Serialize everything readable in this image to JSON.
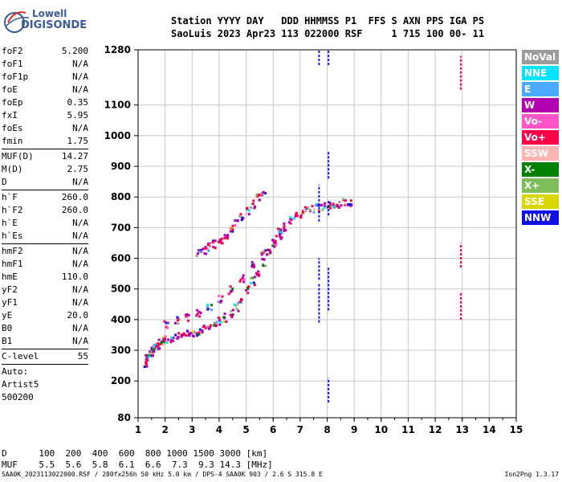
{
  "logo": {
    "line1": "Lowell",
    "line2": "DIGISONDE"
  },
  "header": {
    "labels": "Station YYYY DAY   DDD HHMMSS P1  FFS S AXN PPS IGA PS",
    "values": "SaoLuis 2023 Apr23 113 022000 RSF     1 715 100 00- 11"
  },
  "params": [
    {
      "label": "foF2",
      "value": "5.200"
    },
    {
      "label": "foF1",
      "value": "N/A"
    },
    {
      "label": "foF1p",
      "value": "N/A"
    },
    {
      "label": "foE",
      "value": "N/A"
    },
    {
      "label": "foEp",
      "value": "0.35"
    },
    {
      "label": "fxI",
      "value": "5.95"
    },
    {
      "label": "foEs",
      "value": "N/A"
    },
    {
      "label": "fmin",
      "value": "1.75"
    },
    {
      "sep": true
    },
    {
      "label": "MUF(D)",
      "value": "14.27"
    },
    {
      "label": "M(D)",
      "value": "2.75"
    },
    {
      "label": "D",
      "value": "N/A"
    },
    {
      "sep": true
    },
    {
      "label": "h`F",
      "value": "260.0"
    },
    {
      "label": "h`F2",
      "value": "260.0"
    },
    {
      "label": "h`E",
      "value": "N/A"
    },
    {
      "label": "h`Es",
      "value": "N/A"
    },
    {
      "sep": true
    },
    {
      "label": "hmF2",
      "value": "N/A"
    },
    {
      "label": "hmF1",
      "value": "N/A"
    },
    {
      "label": "hmE",
      "value": "110.0"
    },
    {
      "label": "yF2",
      "value": "N/A"
    },
    {
      "label": "yF1",
      "value": "N/A"
    },
    {
      "label": "yE",
      "value": "20.0"
    },
    {
      "label": "B0",
      "value": "N/A"
    },
    {
      "label": "B1",
      "value": "N/A"
    },
    {
      "sep": true
    },
    {
      "label": "C-level",
      "value": "55"
    },
    {
      "sep": true
    },
    {
      "text": "Auto:"
    },
    {
      "text": "Artist5"
    },
    {
      "text": "500200"
    }
  ],
  "legend": [
    {
      "label": "NoVal",
      "color": "#9b9b9b"
    },
    {
      "label": "NNE",
      "color": "#00e4ff"
    },
    {
      "label": "E",
      "color": "#4aa8ff"
    },
    {
      "label": "W",
      "color": "#b000b0"
    },
    {
      "label": "Vo-",
      "color": "#ff55c8"
    },
    {
      "label": "Vo+",
      "color": "#ff0048"
    },
    {
      "label": "SSW",
      "color": "#ffb4b4"
    },
    {
      "label": "X-",
      "color": "#008000"
    },
    {
      "label": "X+",
      "color": "#7dbd5a"
    },
    {
      "label": "SSE",
      "color": "#d8d800"
    },
    {
      "label": "NNW",
      "color": "#1010e8"
    }
  ],
  "bottom": {
    "d_row": "D      100  200  400  600  800 1000 1500 3000 [km]",
    "muf_row": "MUF    5.5  5.6  5.8  6.1  6.6  7.3  9.3 14.3 [MHz]"
  },
  "footer": {
    "left": "SAA0K_2023113022000.RSF / 280fx256h 50 kHz 5.0 km / DPS-4 SAA0K 903 / 2.6 S 315.8 E",
    "right": "Ion2Png 1.3.17"
  },
  "chart_data": {
    "type": "scatter",
    "xlim": [
      1,
      15
    ],
    "ylim": [
      80,
      1280
    ],
    "x_ticks": [
      "1",
      "2",
      "3",
      "4",
      "5",
      "6",
      "7",
      "8",
      "9",
      "10",
      "11",
      "12",
      "13",
      "14",
      "15"
    ],
    "y_ticks": [
      "80",
      "200",
      "300",
      "400",
      "500",
      "600",
      "700",
      "800",
      "900",
      "1000",
      "1100",
      "1280"
    ],
    "grid": true,
    "trace_points": [
      [
        1.25,
        262
      ],
      [
        1.3,
        275
      ],
      [
        1.4,
        290
      ],
      [
        1.5,
        300
      ],
      [
        1.6,
        312
      ],
      [
        1.7,
        320
      ],
      [
        1.8,
        328
      ],
      [
        1.9,
        333
      ],
      [
        2.0,
        338
      ],
      [
        2.2,
        343
      ],
      [
        2.4,
        348
      ],
      [
        2.6,
        352
      ],
      [
        2.8,
        356
      ],
      [
        3.0,
        360
      ],
      [
        3.2,
        365
      ],
      [
        3.4,
        372
      ],
      [
        3.6,
        380
      ],
      [
        3.8,
        388
      ],
      [
        4.0,
        398
      ],
      [
        4.2,
        410
      ],
      [
        4.4,
        425
      ],
      [
        4.6,
        445
      ],
      [
        4.8,
        470
      ],
      [
        5.0,
        500
      ],
      [
        5.2,
        530
      ],
      [
        5.4,
        560
      ],
      [
        5.6,
        590
      ],
      [
        5.8,
        620
      ],
      [
        6.0,
        650
      ],
      [
        6.2,
        680
      ],
      [
        6.4,
        705
      ],
      [
        6.6,
        725
      ],
      [
        6.8,
        740
      ],
      [
        7.0,
        750
      ],
      [
        7.2,
        758
      ],
      [
        7.4,
        765
      ],
      [
        7.6,
        770
      ],
      [
        7.8,
        775
      ],
      [
        8.0,
        778
      ],
      [
        8.2,
        780
      ],
      [
        8.4,
        782
      ],
      [
        8.6,
        785
      ],
      [
        8.8,
        788
      ],
      [
        2.0,
        390
      ],
      [
        2.4,
        400
      ],
      [
        2.8,
        410
      ],
      [
        3.2,
        425
      ],
      [
        3.6,
        445
      ],
      [
        4.0,
        470
      ],
      [
        4.4,
        500
      ],
      [
        4.8,
        540
      ],
      [
        5.2,
        585
      ],
      [
        5.6,
        625
      ],
      [
        6.0,
        665
      ],
      [
        6.2,
        690
      ],
      [
        3.8,
        650
      ],
      [
        4.0,
        665
      ],
      [
        4.2,
        680
      ],
      [
        4.4,
        700
      ],
      [
        4.6,
        720
      ],
      [
        4.8,
        740
      ],
      [
        5.0,
        760
      ],
      [
        5.2,
        780
      ],
      [
        5.4,
        800
      ],
      [
        5.6,
        812
      ],
      [
        3.6,
        640
      ],
      [
        3.4,
        630
      ],
      [
        3.2,
        620
      ]
    ],
    "interference_lines": [
      {
        "x": 7.7,
        "y_ranges": [
          [
            1230,
            1280
          ],
          [
            720,
            840
          ],
          [
            530,
            600
          ],
          [
            390,
            520
          ]
        ],
        "color": "#1010e8"
      },
      {
        "x": 8.05,
        "y_ranges": [
          [
            860,
            950
          ],
          [
            430,
            570
          ],
          [
            130,
            210
          ],
          [
            1230,
            1280
          ],
          [
            740,
            790
          ]
        ],
        "color": "#1010e8"
      },
      {
        "x": 12.95,
        "y_ranges": [
          [
            1150,
            1260
          ],
          [
            570,
            650
          ],
          [
            400,
            490
          ]
        ],
        "color": "#ff0048"
      }
    ]
  }
}
